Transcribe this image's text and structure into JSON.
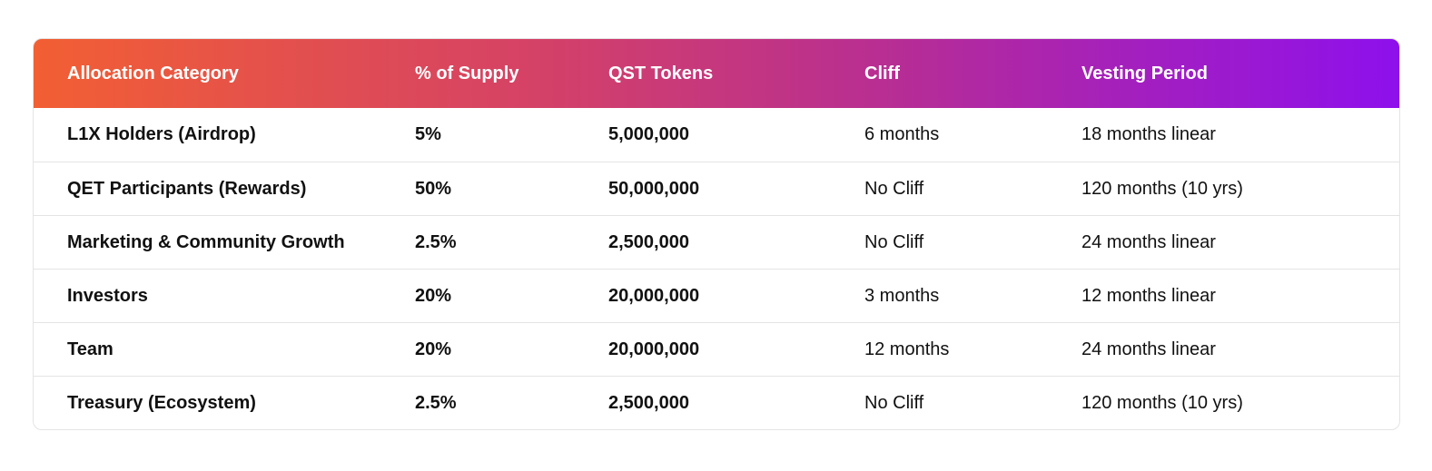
{
  "table": {
    "headers": [
      "Allocation Category",
      "% of Supply",
      "QST Tokens",
      "Cliff",
      "Vesting Period"
    ],
    "rows": [
      [
        "L1X Holders (Airdrop)",
        "5%",
        "5,000,000",
        "6 months",
        "18 months linear"
      ],
      [
        "QET Participants (Rewards)",
        "50%",
        "50,000,000",
        "No Cliff",
        "120 months (10 yrs)"
      ],
      [
        "Marketing & Community Growth",
        "2.5%",
        "2,500,000",
        "No Cliff",
        "24 months linear"
      ],
      [
        "Investors",
        "20%",
        "20,000,000",
        "3 months",
        "12 months linear"
      ],
      [
        "Team",
        "20%",
        "20,000,000",
        "12 months",
        "24 months linear"
      ],
      [
        "Treasury (Ecosystem)",
        "2.5%",
        "2,500,000",
        "No Cliff",
        "120 months (10 yrs)"
      ]
    ],
    "header_gradient": [
      "#f25f33",
      "#d64364",
      "#b82e92",
      "#8e10ec"
    ]
  }
}
